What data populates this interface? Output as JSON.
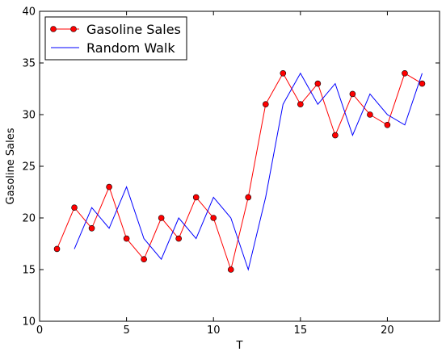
{
  "chart_data": {
    "type": "line",
    "title": "",
    "xlabel": "T",
    "ylabel": "Gasoline Sales",
    "xlim": [
      0,
      23
    ],
    "ylim": [
      10,
      40
    ],
    "xticks": [
      0,
      5,
      10,
      15,
      20
    ],
    "yticks": [
      10,
      15,
      20,
      25,
      30,
      35,
      40
    ],
    "grid": false,
    "legend_position": "top-left",
    "series": [
      {
        "name": "Gasoline Sales",
        "color": "#ff0000",
        "marker": "circle",
        "x": [
          1,
          2,
          3,
          4,
          5,
          6,
          7,
          8,
          9,
          10,
          11,
          12,
          13,
          14,
          15,
          16,
          17,
          18,
          19,
          20,
          21,
          22
        ],
        "y": [
          17,
          21,
          19,
          23,
          18,
          16,
          20,
          18,
          22,
          20,
          15,
          22,
          31,
          34,
          31,
          33,
          28,
          32,
          30,
          29,
          34,
          33
        ]
      },
      {
        "name": "Random Walk",
        "color": "#0000ff",
        "marker": "none",
        "x": [
          2,
          3,
          4,
          5,
          6,
          7,
          8,
          9,
          10,
          11,
          12,
          13,
          14,
          15,
          16,
          17,
          18,
          19,
          20,
          21,
          22
        ],
        "y": [
          17,
          21,
          19,
          23,
          18,
          16,
          20,
          18,
          22,
          20,
          15,
          22,
          31,
          34,
          31,
          33,
          28,
          32,
          30,
          29,
          34
        ]
      }
    ]
  }
}
